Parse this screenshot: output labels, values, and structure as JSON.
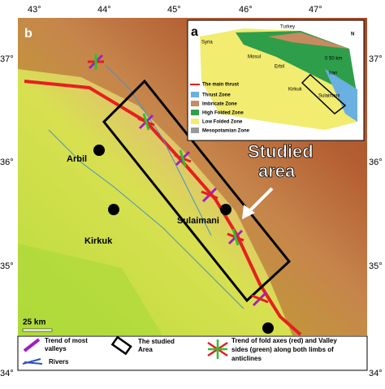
{
  "map": {
    "top_labels": [
      "43°",
      "44°",
      "45°",
      "46°",
      "47°"
    ],
    "left_labels": [
      "37°",
      "36°",
      "35°",
      "34°"
    ],
    "right_labels": [
      "37°",
      "36°",
      "35°",
      "34°"
    ],
    "panel": "b",
    "cities": [
      "Arbil",
      "Kirkuk",
      "Sulaimani"
    ],
    "studied_area": [
      "Studied",
      "area"
    ],
    "scale": "25 km"
  },
  "inset": {
    "panel": "a",
    "countries": [
      "Turkey",
      "Syria",
      "Iran"
    ],
    "cities": [
      "Mosul",
      "Erbil",
      "Kirkuk",
      "Sulaimani"
    ],
    "north": "N",
    "scale": "0   50 km",
    "legend": [
      "The main thrust",
      "Thrust Zone",
      "Imbricate Zone",
      "High Folded Zone",
      "Low Folded Zone",
      "Mesopotamian Zone"
    ]
  },
  "legend": {
    "valleys": [
      "Trend of most",
      "valleys"
    ],
    "studied": [
      "The studied",
      "Area"
    ],
    "folds": [
      "Trend of fold axes (red) and Valley",
      "sides (green)  along both limbs of",
      "anticlines"
    ],
    "rivers": "Rivers"
  }
}
